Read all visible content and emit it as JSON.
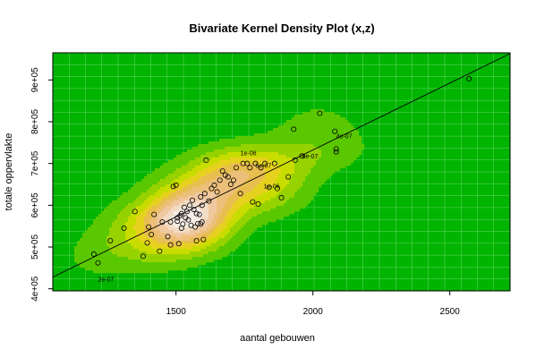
{
  "chart_data": {
    "type": "scatter",
    "title": "Bivariate Kernel Density Plot (x,z)",
    "xlabel": "aantal gebouwen",
    "ylabel": "totale oppervlakte",
    "xlim": [
      1050,
      2720
    ],
    "ylim": [
      395000,
      965000
    ],
    "x_ticks": [
      1500,
      2000,
      2500
    ],
    "x_tick_labels": [
      "1500",
      "2000",
      "2500"
    ],
    "y_ticks": [
      400000,
      500000,
      600000,
      700000,
      800000,
      900000
    ],
    "y_tick_labels": [
      "4e+05",
      "5e+05",
      "6e+05",
      "7e+05",
      "8e+05",
      "9e+05"
    ],
    "grid": true,
    "background_color": "#00b400",
    "grid_color": "#66d966",
    "point_color": "#000000",
    "regression_line": {
      "x": [
        1050,
        2720
      ],
      "y": [
        428000,
        963000
      ]
    },
    "contour_labels": [
      {
        "text": "2e-07",
        "x": 1215,
        "y": 418000
      },
      {
        "text": "6e-07",
        "x": 1790,
        "y": 690000
      },
      {
        "text": "8e-07",
        "x": 1960,
        "y": 712000
      },
      {
        "text": "4e-07",
        "x": 2085,
        "y": 760000
      },
      {
        "text": "1e-06",
        "x": 1735,
        "y": 720000
      },
      {
        "text": "1e-06",
        "x": 1820,
        "y": 640000
      }
    ],
    "points": {
      "x": [
        1200,
        1215,
        1260,
        1310,
        1350,
        1380,
        1395,
        1400,
        1410,
        1420,
        1440,
        1450,
        1470,
        1480,
        1490,
        1500,
        1505,
        1510,
        1515,
        1520,
        1525,
        1530,
        1535,
        1540,
        1545,
        1550,
        1555,
        1560,
        1565,
        1570,
        1575,
        1580,
        1585,
        1590,
        1595,
        1600,
        1605,
        1610,
        1620,
        1630,
        1640,
        1650,
        1660,
        1670,
        1680,
        1690,
        1700,
        1710,
        1720,
        1735,
        1745,
        1760,
        1770,
        1780,
        1790,
        1800,
        1810,
        1825,
        1840,
        1860,
        1870,
        1885,
        1910,
        1930,
        1935,
        1960,
        2025,
        2080,
        2085,
        2085,
        2570,
        1595,
        1520,
        1590,
        1505,
        1480,
        1575
      ],
      "y": [
        483000,
        462000,
        515000,
        545000,
        585000,
        478000,
        510000,
        548000,
        530000,
        578000,
        490000,
        560000,
        525000,
        560000,
        645000,
        648000,
        562000,
        508000,
        575000,
        580000,
        555000,
        595000,
        570000,
        585000,
        565000,
        600000,
        552000,
        612000,
        590000,
        548000,
        515000,
        556000,
        578000,
        620000,
        560000,
        518000,
        628000,
        708000,
        610000,
        640000,
        648000,
        632000,
        660000,
        682000,
        672000,
        668000,
        650000,
        660000,
        690000,
        628000,
        700000,
        700000,
        690000,
        608000,
        700000,
        603000,
        690000,
        700000,
        643000,
        700000,
        640000,
        618000,
        668000,
        782000,
        708000,
        718000,
        820000,
        777000,
        735000,
        728000,
        903000,
        600000,
        545000,
        555000,
        570000,
        505000,
        580000
      ]
    }
  }
}
